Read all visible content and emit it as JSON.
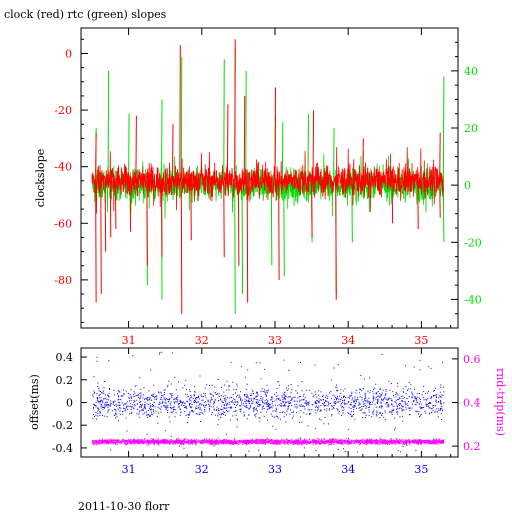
{
  "figure": {
    "title": "clock (red) rtc (green) slopes",
    "footer": "2011-10-30 florr"
  },
  "colors": {
    "background": "#ffffff",
    "axes": "#000000",
    "clock": "#ff0000",
    "rtc": "#00dd00",
    "offset": "#0000ff",
    "rtt": "#ff00ff"
  },
  "chart_data": [
    {
      "type": "line",
      "title": "clock (red) rtc (green) slopes",
      "xlabel": "",
      "ylabel": "clockslope",
      "xlim": [
        30.35,
        35.5
      ],
      "ylim": [
        -97,
        9
      ],
      "y2lim": [
        -50,
        55
      ],
      "grid": false,
      "xticks": [
        31,
        32,
        33,
        34,
        35
      ],
      "yticks": [
        0,
        -20,
        -40,
        -60,
        -80
      ],
      "y2ticks": [
        40,
        20,
        0,
        -20,
        -40
      ],
      "baseline_left": -45,
      "baseline_right": 0,
      "series": [
        {
          "name": "clock",
          "axis": "left",
          "color": "#ff0000",
          "x_range": [
            30.5,
            35.3
          ],
          "center": -45,
          "noise": 4,
          "spikes": [
            [
              30.55,
              -88
            ],
            [
              30.62,
              -85
            ],
            [
              30.68,
              -70
            ],
            [
              30.75,
              -65
            ],
            [
              30.82,
              -62
            ],
            [
              31.02,
              -63
            ],
            [
              31.25,
              -75
            ],
            [
              31.45,
              -72
            ],
            [
              31.72,
              -92
            ],
            [
              31.85,
              -66
            ],
            [
              32.3,
              -72
            ],
            [
              32.5,
              -75
            ],
            [
              32.62,
              -88
            ],
            [
              33.05,
              -80
            ],
            [
              33.5,
              -65
            ],
            [
              33.83,
              -87
            ],
            [
              34.6,
              -60
            ],
            [
              34.95,
              -62
            ],
            [
              35.25,
              -58
            ],
            [
              31.7,
              3
            ],
            [
              32.35,
              -18
            ],
            [
              32.45,
              5
            ],
            [
              32.58,
              -15
            ],
            [
              33.0,
              -12
            ],
            [
              33.52,
              -20
            ],
            [
              30.55,
              -28
            ],
            [
              31.1,
              -22
            ],
            [
              31.6,
              -25
            ],
            [
              34.2,
              -30
            ],
            [
              35.25,
              -28
            ]
          ]
        },
        {
          "name": "rtc",
          "axis": "right",
          "color": "#00dd00",
          "x_range": [
            30.5,
            35.3
          ],
          "center": 0,
          "noise": 4,
          "spikes": [
            [
              30.72,
              40
            ],
            [
              30.55,
              20
            ],
            [
              31.0,
              25
            ],
            [
              31.72,
              45
            ],
            [
              31.45,
              30
            ],
            [
              32.3,
              44
            ],
            [
              32.45,
              48
            ],
            [
              32.6,
              40
            ],
            [
              33.0,
              25
            ],
            [
              33.1,
              22
            ],
            [
              33.45,
              25
            ],
            [
              33.8,
              20
            ],
            [
              34.2,
              12
            ],
            [
              35.3,
              38
            ],
            [
              31.25,
              -35
            ],
            [
              31.45,
              -40
            ],
            [
              32.45,
              -45
            ],
            [
              32.55,
              -38
            ],
            [
              32.95,
              -28
            ],
            [
              33.12,
              -32
            ],
            [
              33.5,
              -20
            ],
            [
              33.83,
              -38
            ],
            [
              34.05,
              -20
            ],
            [
              35.3,
              -20
            ]
          ]
        }
      ]
    },
    {
      "type": "scatter",
      "xlabel": "",
      "ylabel": "offset(ms)",
      "y2label": "rnd-trip(ms)",
      "xlim": [
        30.35,
        35.5
      ],
      "ylim": [
        -0.48,
        0.48
      ],
      "y2lim": [
        0.15,
        0.65
      ],
      "grid": false,
      "xticks": [
        31,
        32,
        33,
        34,
        35
      ],
      "yticks": [
        0.4,
        0.2,
        0,
        -0.2,
        -0.4
      ],
      "y2ticks": [
        0.6,
        0.4,
        0.2
      ],
      "y2ticklabels": [
        "0.6",
        "0.4",
        "0.2"
      ],
      "series": [
        {
          "name": "offset",
          "axis": "left",
          "color": "#0000ff",
          "x_range": [
            30.5,
            35.3
          ],
          "center": 0.0,
          "spread": 0.13,
          "outlier_max": 0.45
        },
        {
          "name": "rnd-trip",
          "axis": "right",
          "color": "#ff00ff",
          "x_range": [
            30.5,
            35.3
          ],
          "center": 0.22,
          "spread": 0.008
        }
      ]
    }
  ]
}
